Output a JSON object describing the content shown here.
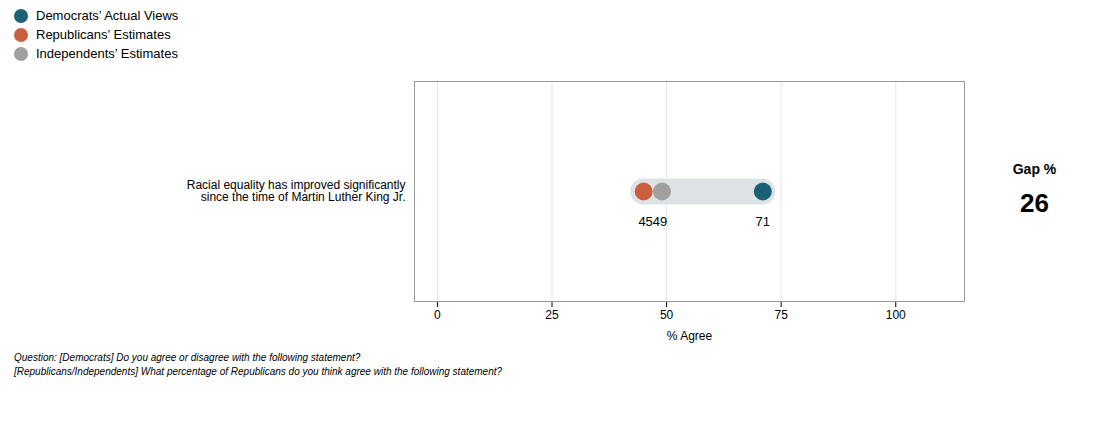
{
  "chart_data": {
    "type": "dumbbell",
    "categories": [
      "Racial equality has improved significantly\nsince the time of Martin Luther King Jr."
    ],
    "series": [
      {
        "name": "Democrats’ Actual Views",
        "color": "#1a6175",
        "values": [
          71
        ]
      },
      {
        "name": "Republicans’ Estimates",
        "color": "#c95f3f",
        "values": [
          45
        ]
      },
      {
        "name": "Independents’ Estimates",
        "color": "#a0a0a0",
        "values": [
          49
        ]
      }
    ],
    "color": "#dde2e5",
    "annotations": [
      {
        "text": "4549",
        "x": 47
      },
      {
        "text": "71",
        "x": 71
      }
    ],
    "gap_label": "Gap %",
    "gap": 26,
    "xlabel": "% Agree",
    "xlim": [
      -5,
      115
    ],
    "xticks": [
      0,
      25,
      50,
      75,
      100
    ],
    "grid": true,
    "tick_labels": "x",
    "legend": "top-left",
    "footnote": [
      "Question: [Democrats] Do you agree or disagree with the following statement?",
      "[Republicans/Independents] What percentage of Republicans do you think agree with the following statement?"
    ]
  }
}
